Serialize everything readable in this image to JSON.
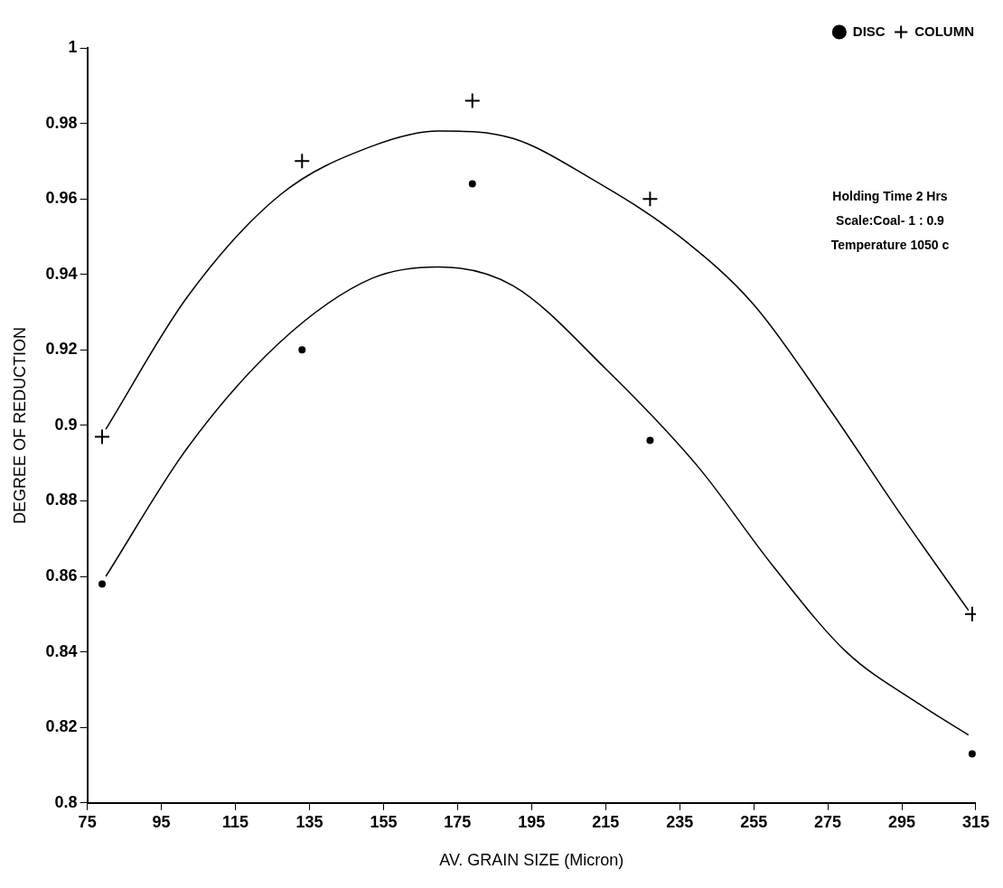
{
  "chart_data": {
    "type": "scatter",
    "xlabel": "AV. GRAIN SIZE (Micron)",
    "ylabel": "DEGREE OF REDUCTION",
    "xlim": [
      75,
      315
    ],
    "xticks": [
      75,
      95,
      115,
      135,
      155,
      175,
      195,
      215,
      235,
      255,
      275,
      295,
      315
    ],
    "ylim": [
      0.8,
      1
    ],
    "yticks": [
      0.8,
      0.82,
      0.84,
      0.86,
      0.88,
      0.9,
      0.92,
      0.94,
      0.96,
      0.98,
      1
    ],
    "grid": false,
    "legend": "top right",
    "annotations": [
      "Holding Time 2 Hrs",
      "Scale:Coal- 1 : 0.9",
      "Temperature 1050 c"
    ],
    "series": [
      {
        "name": "DISC",
        "marker": "circle",
        "color": "#000000",
        "x": [
          79,
          133,
          179,
          227,
          314
        ],
        "values": [
          0.858,
          0.92,
          0.964,
          0.896,
          0.813
        ]
      },
      {
        "name": "COLUMN",
        "marker": "cross",
        "color": "#000000",
        "x": [
          79,
          133,
          179,
          227,
          314
        ],
        "values": [
          0.897,
          0.97,
          0.986,
          0.96,
          0.85
        ]
      },
      {
        "type": "line",
        "marker": "none",
        "color": "#000000",
        "x": [
          80,
          102,
          127,
          152,
          170,
          190,
          215,
          240,
          260,
          280,
          300,
          313
        ],
        "values": [
          0.86,
          0.894,
          0.922,
          0.939,
          0.942,
          0.937,
          0.915,
          0.889,
          0.863,
          0.84,
          0.826,
          0.818
        ]
      },
      {
        "type": "line",
        "marker": "none",
        "color": "#000000",
        "x": [
          80,
          102,
          127,
          152,
          170,
          190,
          210,
          235,
          255,
          275,
          295,
          313
        ],
        "values": [
          0.899,
          0.934,
          0.961,
          0.974,
          0.978,
          0.976,
          0.966,
          0.95,
          0.932,
          0.905,
          0.876,
          0.851
        ]
      }
    ]
  }
}
